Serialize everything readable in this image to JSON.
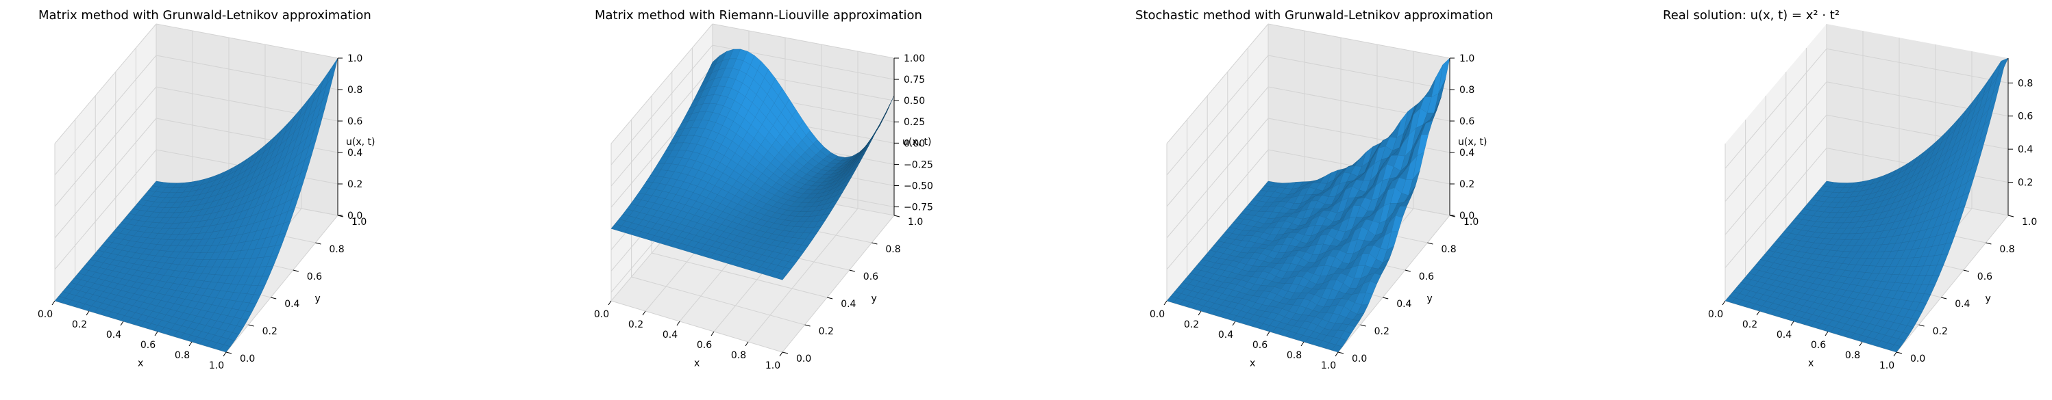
{
  "colors": {
    "surface": "#1f77b4",
    "pane": "#f2f2f2",
    "pane_dark": "#e6e6e6",
    "grid": "#d3d3d3",
    "axis": "#000000"
  },
  "chart_data": [
    {
      "type": "surface3d",
      "title": "Matrix method with Grunwald-Letnikov approximation",
      "xlabel": "x",
      "ylabel": "y",
      "zlabel": "u(x, t)",
      "xticks": [
        "0.0",
        "0.2",
        "0.4",
        "0.6",
        "0.8",
        "1.0"
      ],
      "yticks": [
        "0.0",
        "0.2",
        "0.4",
        "0.6",
        "0.8",
        "1.0"
      ],
      "zticks": [
        "0.0",
        "0.2",
        "0.4",
        "0.6",
        "0.8",
        "1.0"
      ],
      "zlim": [
        0,
        1
      ],
      "surface": "u = x^2 * y^2",
      "grid": true
    },
    {
      "type": "surface3d",
      "title": "Matrix method with Riemann-Liouville approximation",
      "xlabel": "x",
      "ylabel": "y",
      "zlabel": "u(x, t)",
      "xticks": [
        "0.0",
        "0.2",
        "0.4",
        "0.6",
        "0.8",
        "1.0"
      ],
      "yticks": [
        "0.0",
        "0.2",
        "0.4",
        "0.6",
        "0.8",
        "1.0"
      ],
      "zticks": [
        "−0.75",
        "−0.50",
        "−0.25",
        "0.00",
        "0.25",
        "0.50",
        "0.75",
        "1.00"
      ],
      "zlim": [
        -0.85,
        1.0
      ],
      "surface": "oscillating along the far edge: peak ≈0.75 near x=0, dip ≈−0.6, rise to 1.0 at x=1,y=1",
      "grid": true
    },
    {
      "type": "surface3d",
      "title": "Stochastic method with Grunwald-Letnikov approximation",
      "xlabel": "x",
      "ylabel": "y",
      "zlabel": "u(x, t)",
      "xticks": [
        "0.0",
        "0.2",
        "0.4",
        "0.6",
        "0.8",
        "1.0"
      ],
      "yticks": [
        "0.0",
        "0.2",
        "0.4",
        "0.6",
        "0.8",
        "1.0"
      ],
      "zticks": [
        "0.0",
        "0.2",
        "0.4",
        "0.6",
        "0.8",
        "1.0"
      ],
      "zlim": [
        0,
        1
      ],
      "surface": "u ≈ x^2 * y^2 with stochastic noise",
      "grid": true
    },
    {
      "type": "surface3d",
      "title": "Real solution: u(x, t) = x² · t²",
      "xlabel": "x",
      "ylabel": "y",
      "zlabel": "",
      "xticks": [
        "0.0",
        "0.2",
        "0.4",
        "0.6",
        "0.8",
        "1.0"
      ],
      "yticks": [
        "0.0",
        "0.2",
        "0.4",
        "0.6",
        "0.8",
        "1.0"
      ],
      "zticks": [
        "0.2",
        "0.4",
        "0.6",
        "0.8"
      ],
      "zlim": [
        0,
        0.95
      ],
      "surface": "u = x^2 * t^2",
      "grid": true
    }
  ]
}
